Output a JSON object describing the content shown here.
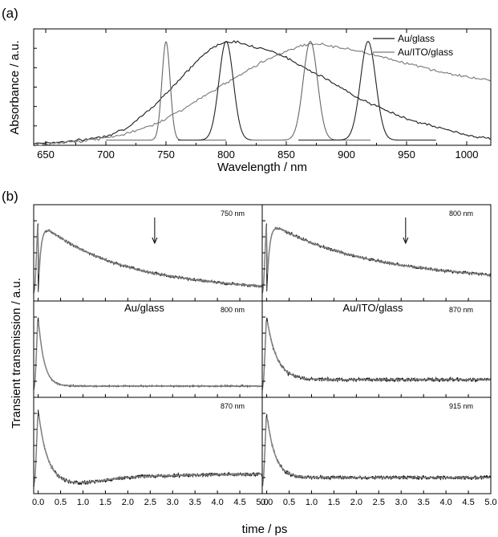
{
  "chart_data": [
    {
      "panel": "(a)",
      "type": "line",
      "xlabel": "Wavelength / nm",
      "ylabel": "Absorbance / a.u.",
      "xlim": [
        640,
        1020
      ],
      "xticks": [
        650,
        700,
        750,
        800,
        850,
        900,
        950,
        1000
      ],
      "ylim": [
        0,
        1.12
      ],
      "y_tick_labels": "none",
      "legend": "top-right",
      "series": [
        {
          "name": "Au/glass",
          "color": "#1a1a1a",
          "x": [
            640,
            660,
            680,
            700,
            720,
            740,
            760,
            780,
            790,
            800,
            810,
            820,
            840,
            860,
            880,
            900,
            920,
            940,
            960,
            980,
            1000,
            1020
          ],
          "y": [
            0.02,
            0.03,
            0.05,
            0.09,
            0.18,
            0.38,
            0.62,
            0.86,
            0.95,
            1.0,
            0.99,
            0.96,
            0.9,
            0.78,
            0.66,
            0.52,
            0.4,
            0.3,
            0.22,
            0.16,
            0.1,
            0.06
          ]
        },
        {
          "name": "Au/ITO/glass",
          "color": "#777777",
          "x": [
            640,
            660,
            680,
            700,
            720,
            740,
            760,
            780,
            800,
            820,
            840,
            860,
            870,
            880,
            900,
            920,
            940,
            960,
            980,
            1000,
            1020
          ],
          "y": [
            0.0,
            0.02,
            0.04,
            0.07,
            0.12,
            0.2,
            0.32,
            0.46,
            0.6,
            0.74,
            0.86,
            0.95,
            0.98,
            0.97,
            0.93,
            0.88,
            0.82,
            0.76,
            0.7,
            0.66,
            0.62
          ]
        }
      ],
      "laser_spectra": [
        {
          "center": 750,
          "fwhm": 8,
          "range": [
            700,
            800
          ],
          "color": "#666666"
        },
        {
          "center": 800,
          "fwhm": 14,
          "range": [
            760,
            850
          ],
          "color": "#222222"
        },
        {
          "center": 870,
          "fwhm": 14,
          "range": [
            820,
            920
          ],
          "color": "#666666"
        },
        {
          "center": 918,
          "fwhm": 15,
          "range": [
            860,
            975
          ],
          "color": "#222222"
        }
      ]
    },
    {
      "panel": "(b)",
      "type": "line",
      "xlabel": "time / ps",
      "ylabel": "Transient transmission / a.u.",
      "xlim": [
        -0.1,
        5.0
      ],
      "xticks": [
        0.0,
        0.5,
        1.0,
        1.5,
        2.0,
        2.5,
        3.0,
        3.5,
        4.0,
        4.5,
        5.0
      ],
      "y_tick_labels": "none",
      "columns": [
        "Au/glass",
        "Au/ITO/glass"
      ],
      "subplots": [
        {
          "row": 0,
          "col": 0,
          "probe": "750 nm",
          "kind": "slow",
          "peak": 0.17,
          "decay": 1.6,
          "base": 0.0,
          "rise": 0.0,
          "recov": 0,
          "noise": 0.025,
          "arrow": 2.6
        },
        {
          "row": 0,
          "col": 1,
          "probe": "800 nm",
          "kind": "slow",
          "peak": 0.3,
          "decay": 1.9,
          "base": 0.0,
          "rise": 0.0,
          "recov": 0,
          "noise": 0.025,
          "arrow": 3.1
        },
        {
          "row": 1,
          "col": 0,
          "probe": "800 nm",
          "kind": "fast",
          "peak": 0.0,
          "decay": 0.13,
          "base": 0.06,
          "rise": 0.0,
          "recov": 0,
          "noise": 0.012,
          "arrow": null
        },
        {
          "row": 1,
          "col": 1,
          "probe": "870 nm",
          "kind": "fast",
          "peak": 0.0,
          "decay": 0.22,
          "base": 0.14,
          "rise": 0.0,
          "recov": 0,
          "noise": 0.035,
          "arrow": null
        },
        {
          "row": 2,
          "col": 0,
          "probe": "870 nm",
          "kind": "dip",
          "peak": 0.0,
          "decay": 0.2,
          "base": 0.09,
          "rise": 0.35,
          "recov": 2.2,
          "noise": 0.035,
          "arrow": null
        },
        {
          "row": 2,
          "col": 1,
          "probe": "915 nm",
          "kind": "fast",
          "peak": 0.0,
          "decay": 0.18,
          "base": 0.12,
          "rise": 0.0,
          "recov": 0,
          "noise": 0.035,
          "arrow": null
        }
      ]
    }
  ]
}
